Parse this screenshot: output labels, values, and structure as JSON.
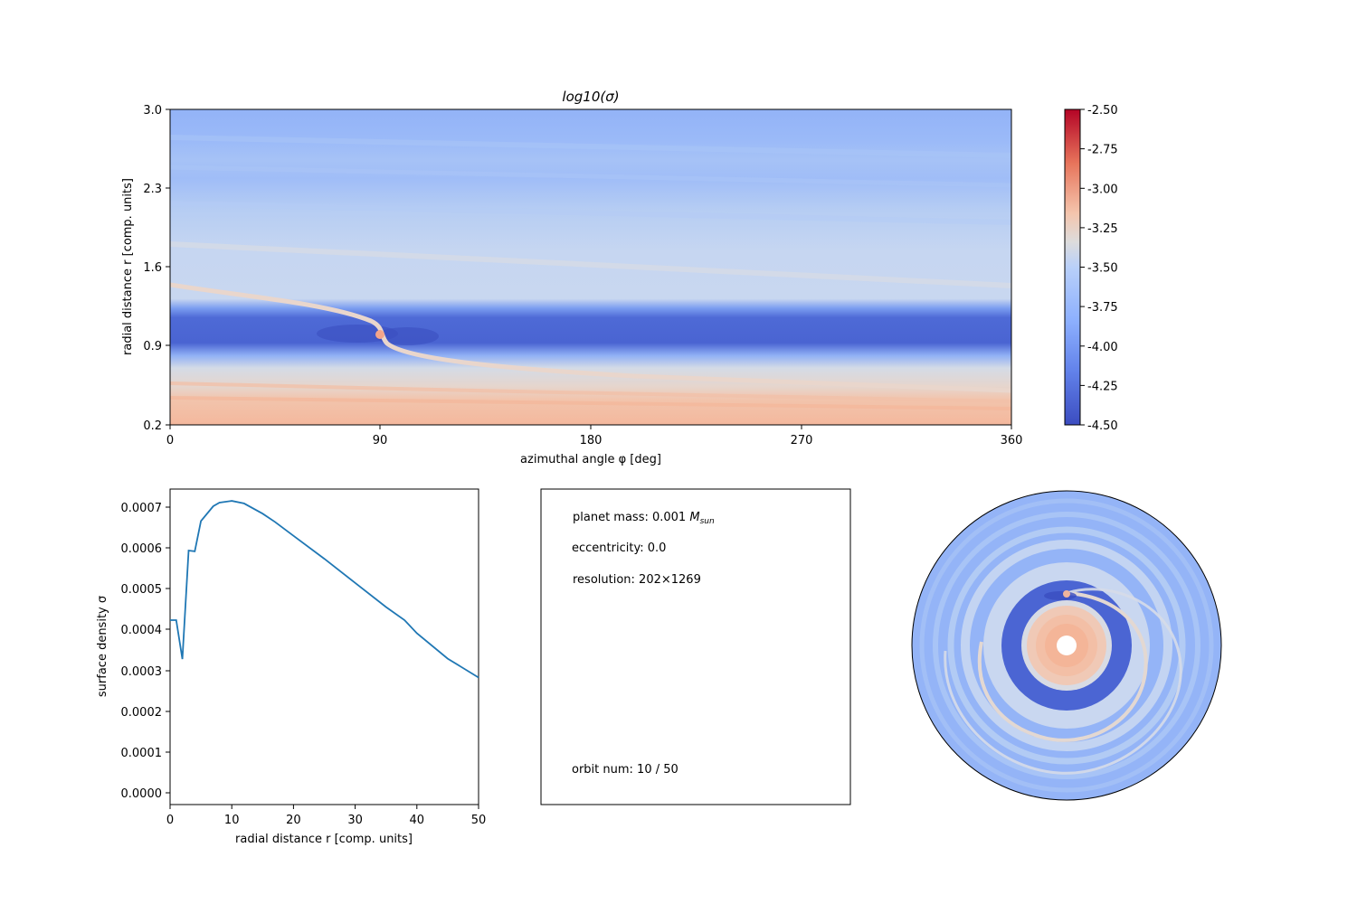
{
  "figure": {
    "heatmap": {
      "title": "log10(σ)",
      "xlabel": "azimuthal angle φ [deg]",
      "ylabel": "radial distance r [comp. units]",
      "xticks": [
        "0",
        "90",
        "180",
        "270",
        "360"
      ],
      "yticks": [
        "0.2",
        "0.9",
        "1.6",
        "2.3",
        "3.0"
      ]
    },
    "colorbar": {
      "ticks": [
        "-2.50",
        "-2.75",
        "-3.00",
        "-3.25",
        "-3.50",
        "-3.75",
        "-4.00",
        "-4.25",
        "-4.50"
      ],
      "colormap": [
        "#3b4cc0",
        "#7b9ff9",
        "#c0d4f5",
        "#dddddd",
        "#f2cbb7",
        "#ee8468",
        "#b40426"
      ]
    },
    "profile": {
      "xlabel": "radial distance r [comp. units]",
      "ylabel": "surface density σ",
      "xticks": [
        "0",
        "10",
        "20",
        "30",
        "40",
        "50"
      ],
      "yticks": [
        "0.0000",
        "0.0001",
        "0.0002",
        "0.0003",
        "0.0004",
        "0.0005",
        "0.0006",
        "0.0007"
      ],
      "line_color": "#1f77b4"
    },
    "info": {
      "mass_prefix": "planet mass: 0.001 ",
      "mass_unit": "M",
      "mass_unit_sub": "sun",
      "eccentricity": "eccentricity: 0.0",
      "resolution": "resolution: 202×1269",
      "orbit": "orbit num: 10 / 50"
    }
  },
  "chart_data": [
    {
      "type": "heatmap",
      "title": "log10(σ)",
      "xlabel": "azimuthal angle φ [deg]",
      "ylabel": "radial distance r [comp. units]",
      "xlim": [
        0,
        360
      ],
      "ylim": [
        0.2,
        3.0
      ],
      "clim": [
        -4.5,
        -2.5
      ],
      "colorbar_ticks": [
        -2.5,
        -2.75,
        -3.0,
        -3.25,
        -3.5,
        -3.75,
        -4.0,
        -4.25,
        -4.5
      ],
      "planet": {
        "phi": 90,
        "r": 1.0
      },
      "gap": {
        "r_min": 0.85,
        "r_max": 1.15
      },
      "spiral_wake_endpoints": {
        "outer_at_phi0_r": 1.45,
        "outer_at_phi360_r": 1.4,
        "inner_at_phi360_r": 0.55
      }
    },
    {
      "type": "line",
      "xlabel": "radial distance r [comp. units]",
      "ylabel": "surface density σ",
      "xlim": [
        0,
        50
      ],
      "ylim": [
        -3e-05,
        0.00074
      ],
      "x": [
        0,
        1,
        2,
        3,
        4,
        5,
        7,
        8,
        10,
        12,
        15,
        17,
        20,
        25,
        30,
        35,
        38,
        40,
        45,
        50
      ],
      "y": [
        0.00042,
        0.00042,
        0.000325,
        0.00059,
        0.000588,
        0.000662,
        0.000698,
        0.000707,
        0.000711,
        0.000705,
        0.00068,
        0.00066,
        0.000626,
        0.00057,
        0.000511,
        0.000452,
        0.00042,
        0.000388,
        0.000326,
        0.00028
      ]
    },
    {
      "type": "polar-heatmap",
      "description_source": "same field as heatmap, shown in polar coordinates",
      "planet": {
        "phi": 90,
        "r": 1.0
      }
    }
  ]
}
